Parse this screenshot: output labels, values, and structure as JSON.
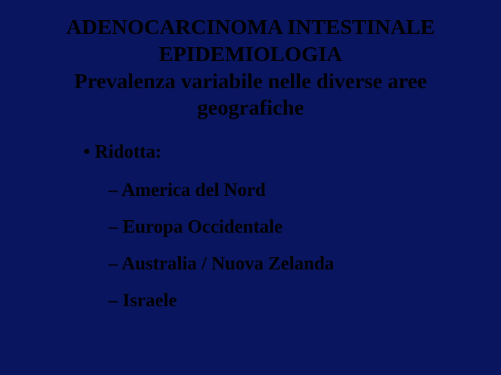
{
  "slide": {
    "background_color": "#0a1560",
    "text_color": "#000000",
    "font_family": "Times New Roman",
    "title": {
      "lines": [
        "ADENOCARCINOMA INTESTINALE",
        "EPIDEMIOLOGIA",
        "Prevalenza variabile nelle diverse aree",
        "geografiche"
      ],
      "font_size": 31,
      "font_weight": "bold",
      "align": "center"
    },
    "content": {
      "level1": {
        "text": "Ridotta:",
        "bullet_char": "•",
        "font_size": 27,
        "font_weight": "bold"
      },
      "level2_items": [
        "America del Nord",
        "Europa Occidentale",
        "Australia / Nuova Zelanda",
        "Israele"
      ],
      "level2_bullet_char": "–",
      "level2_font_size": 27,
      "level2_font_weight": "bold"
    }
  }
}
